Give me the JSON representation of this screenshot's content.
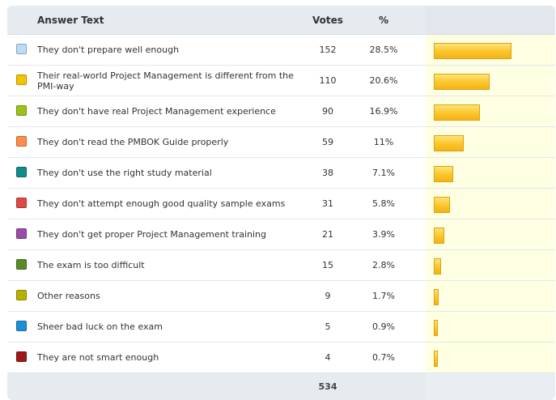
{
  "header": {
    "answer_label": "Answer Text",
    "votes_label": "Votes",
    "percent_label": "%"
  },
  "answers": [
    {
      "text": "They don't prepare well enough",
      "votes": "152",
      "percent": "28.5%",
      "share": 28.5,
      "color": "#bcdcf6"
    },
    {
      "text": "Their real-world Project Management is different from the PMI-way",
      "votes": "110",
      "percent": "20.6%",
      "share": 20.6,
      "color": "#f5c400"
    },
    {
      "text": "They don't have real Project Management experience",
      "votes": "90",
      "percent": "16.9%",
      "share": 16.9,
      "color": "#9cc21a"
    },
    {
      "text": "They don't read the PMBOK Guide properly",
      "votes": "59",
      "percent": "11%",
      "share": 11.0,
      "color": "#ff8c4a"
    },
    {
      "text": "They don't use the right study material",
      "votes": "38",
      "percent": "7.1%",
      "share": 7.1,
      "color": "#158a8a"
    },
    {
      "text": "They don't attempt enough good quality sample exams",
      "votes": "31",
      "percent": "5.8%",
      "share": 5.8,
      "color": "#e04848"
    },
    {
      "text": "They don't get proper Project Management training",
      "votes": "21",
      "percent": "3.9%",
      "share": 3.9,
      "color": "#9b4ca8"
    },
    {
      "text": "The exam is too difficult",
      "votes": "15",
      "percent": "2.8%",
      "share": 2.8,
      "color": "#5b8a2a"
    },
    {
      "text": "Other reasons",
      "votes": "9",
      "percent": "1.7%",
      "share": 1.7,
      "color": "#b8b000"
    },
    {
      "text": "Sheer bad luck on the exam",
      "votes": "5",
      "percent": "0.9%",
      "share": 0.9,
      "color": "#1a8fd6"
    },
    {
      "text": "They are not smart enough",
      "votes": "4",
      "percent": "0.7%",
      "share": 0.7,
      "color": "#a01818"
    }
  ],
  "footer": {
    "total_votes": "534"
  }
}
